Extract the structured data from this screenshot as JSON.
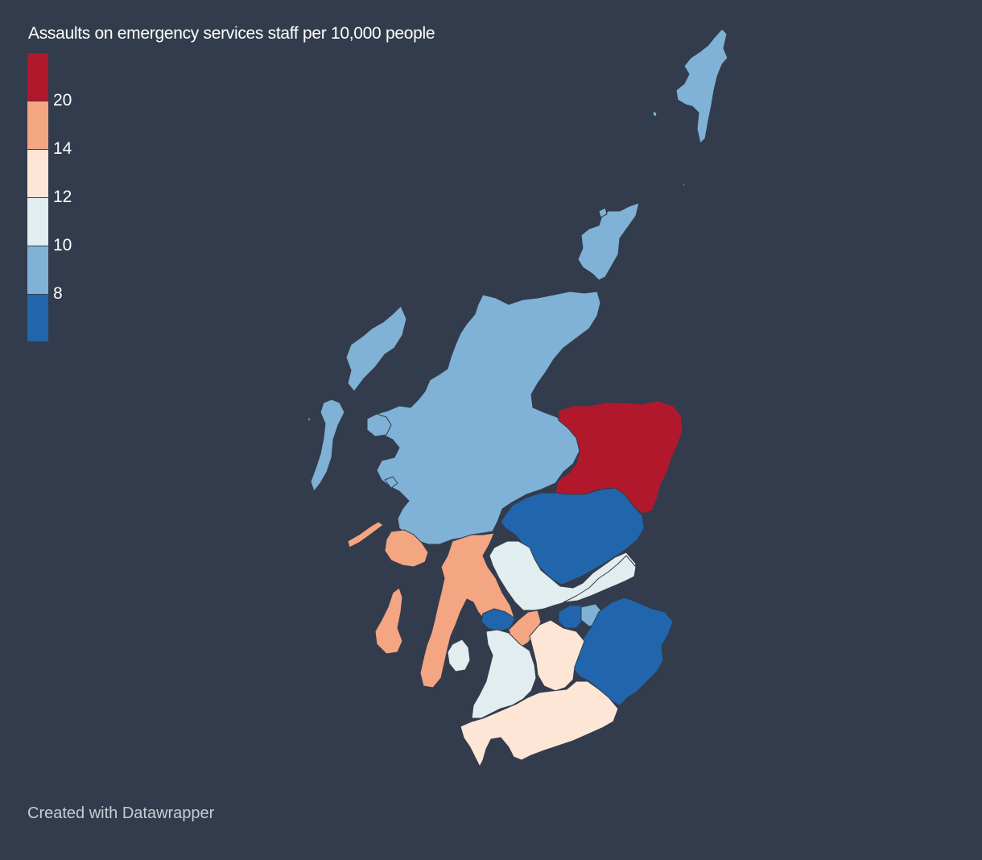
{
  "title": "Assaults on emergency services staff per 10,000 people",
  "credit": "Created with Datawrapper",
  "legend": {
    "bins": [
      {
        "color": "#b2182b",
        "label": ""
      },
      {
        "color": "#f4a582",
        "label": "20"
      },
      {
        "color": "#fde6d6",
        "label": "14"
      },
      {
        "color": "#e1edee",
        "label": "12"
      },
      {
        "color": "#7fb2d6",
        "label": "10"
      },
      {
        "color": "#2166ac",
        "label": "8"
      }
    ]
  },
  "colors": {
    "background": "#333c4c",
    "border": "#333c4c"
  }
}
